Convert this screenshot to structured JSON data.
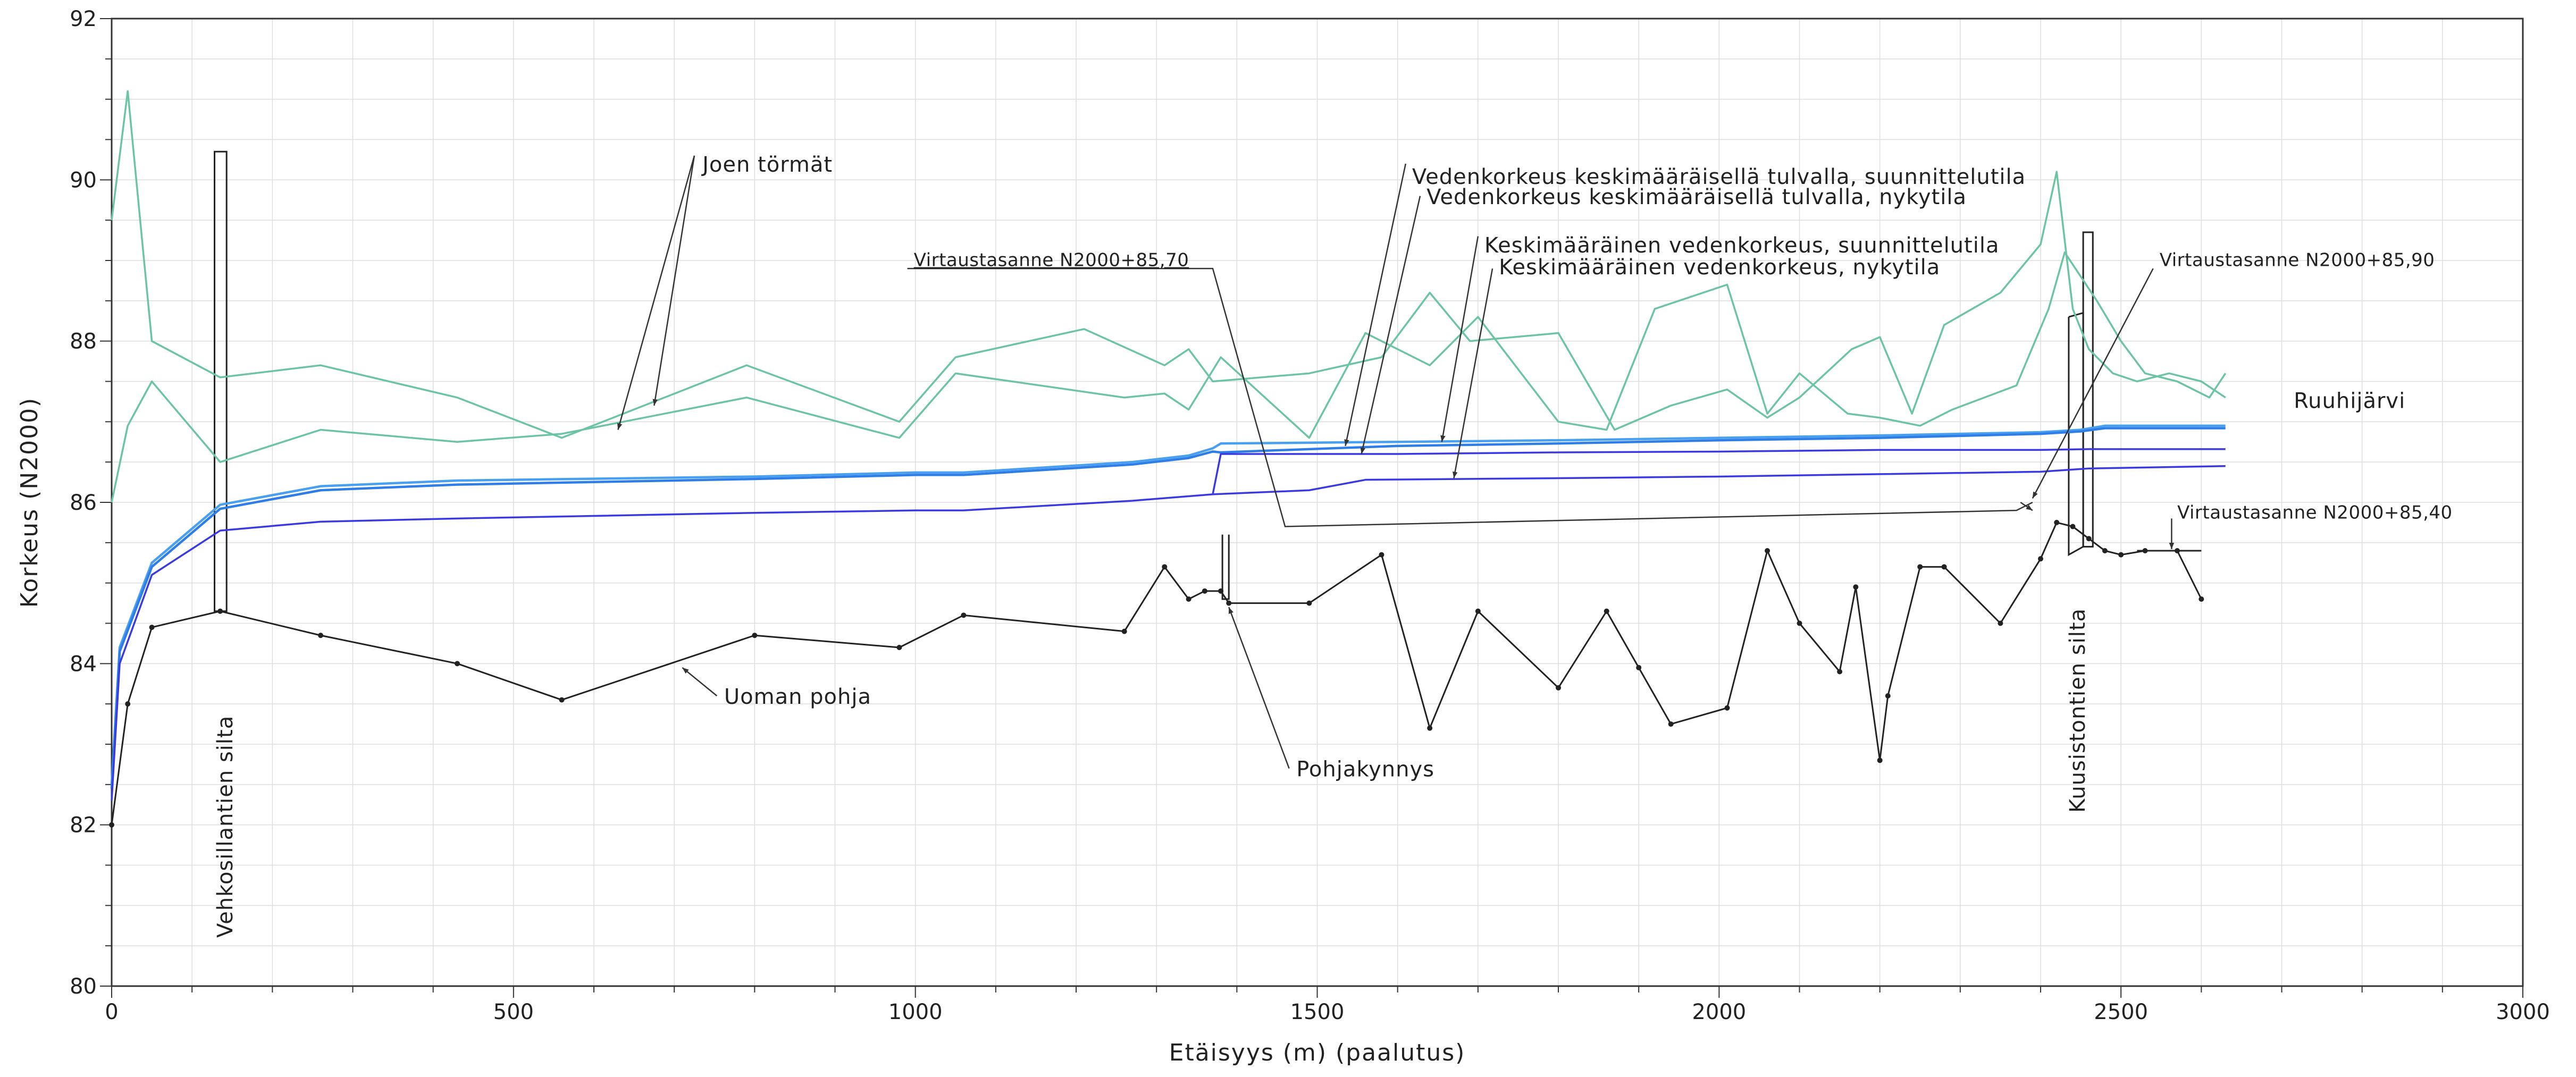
{
  "chart_data": {
    "type": "line",
    "xlabel": "Etäisyys (m) (paalutus)",
    "ylabel": "Korkeus (N2000)",
    "xlim": [
      0,
      3000
    ],
    "ylim": [
      80,
      92
    ],
    "x_ticks": [
      0,
      500,
      1000,
      1500,
      2000,
      2500,
      3000
    ],
    "y_ticks": [
      80,
      82,
      84,
      86,
      88,
      90,
      92
    ],
    "grid": true,
    "colors": {
      "bank": "#6cc4a4",
      "water_high_design": "#4aa0f0",
      "water_high_current": "#2f7ee8",
      "water_mean": "#3a3ae0",
      "bed": "#222222",
      "frame": "#333333",
      "grid": "#dddddd"
    },
    "series": [
      {
        "key": "bank_left",
        "color_key": "bank",
        "x": [
          0,
          20,
          50,
          135,
          260,
          430,
          560,
          790,
          980,
          1050,
          1210,
          1310,
          1340,
          1370,
          1490,
          1580,
          1640,
          1690,
          1800,
          1870,
          1940,
          2010,
          2060,
          2100,
          2165,
          2200,
          2240,
          2280,
          2350,
          2400,
          2420,
          2440,
          2460,
          2490,
          2520,
          2560,
          2600,
          2630
        ],
        "y": [
          89.5,
          91.1,
          88.0,
          87.55,
          87.7,
          87.3,
          86.8,
          87.7,
          87.0,
          87.8,
          88.15,
          87.7,
          87.9,
          87.5,
          87.6,
          87.8,
          88.6,
          88.0,
          88.1,
          86.9,
          87.2,
          87.4,
          87.05,
          87.3,
          87.9,
          88.05,
          87.1,
          88.2,
          88.6,
          89.2,
          90.1,
          88.4,
          87.9,
          87.6,
          87.5,
          87.6,
          87.5,
          87.3
        ]
      },
      {
        "key": "bank_right",
        "color_key": "bank",
        "x": [
          0,
          20,
          50,
          135,
          260,
          430,
          560,
          790,
          980,
          1050,
          1260,
          1310,
          1340,
          1380,
          1490,
          1560,
          1640,
          1700,
          1800,
          1860,
          1920,
          2010,
          2060,
          2100,
          2160,
          2200,
          2250,
          2290,
          2370,
          2410,
          2430,
          2450,
          2470,
          2500,
          2530,
          2570,
          2610,
          2630
        ],
        "y": [
          86.0,
          86.95,
          87.5,
          86.5,
          86.9,
          86.75,
          86.85,
          87.3,
          86.8,
          87.6,
          87.3,
          87.35,
          87.15,
          87.8,
          86.8,
          88.1,
          87.7,
          88.3,
          87.0,
          86.9,
          88.4,
          88.7,
          87.1,
          87.6,
          87.1,
          87.05,
          86.95,
          87.15,
          87.45,
          88.4,
          89.1,
          88.8,
          88.5,
          88.0,
          87.6,
          87.5,
          87.3,
          87.6
        ]
      },
      {
        "key": "hw_design",
        "color_key": "water_high_design",
        "x": [
          0,
          10,
          50,
          135,
          260,
          430,
          800,
          1000,
          1060,
          1270,
          1340,
          1370,
          1380,
          1600,
          1800,
          2000,
          2200,
          2400,
          2450,
          2480,
          2630
        ],
        "y": [
          82.5,
          84.2,
          85.25,
          85.97,
          86.2,
          86.27,
          86.32,
          86.37,
          86.37,
          86.5,
          86.58,
          86.67,
          86.73,
          86.75,
          86.77,
          86.8,
          86.83,
          86.87,
          86.9,
          86.95,
          86.95
        ]
      },
      {
        "key": "hw_current",
        "color_key": "water_high_current",
        "x": [
          0,
          10,
          50,
          135,
          260,
          430,
          800,
          1000,
          1060,
          1270,
          1340,
          1370,
          1380,
          1600,
          1800,
          2000,
          2200,
          2400,
          2450,
          2480,
          2630
        ],
        "y": [
          82.45,
          84.15,
          85.2,
          85.92,
          86.15,
          86.22,
          86.29,
          86.34,
          86.34,
          86.47,
          86.55,
          86.63,
          86.62,
          86.7,
          86.73,
          86.77,
          86.8,
          86.85,
          86.88,
          86.92,
          86.92
        ]
      },
      {
        "key": "mw_design",
        "color_key": "water_mean",
        "x": [
          1370,
          1380,
          1600,
          1800,
          2000,
          2200,
          2400,
          2460,
          2630
        ],
        "y": [
          86.1,
          86.6,
          86.6,
          86.62,
          86.63,
          86.65,
          86.65,
          86.66,
          86.66
        ]
      },
      {
        "key": "mw_current",
        "color_key": "water_mean",
        "x": [
          0,
          10,
          50,
          135,
          260,
          430,
          800,
          1000,
          1060,
          1270,
          1370,
          1490,
          1560,
          1800,
          2000,
          2200,
          2400,
          2460,
          2630
        ],
        "y": [
          82.3,
          84.0,
          85.1,
          85.65,
          85.76,
          85.8,
          85.87,
          85.9,
          85.9,
          86.02,
          86.1,
          86.15,
          86.28,
          86.3,
          86.32,
          86.35,
          86.38,
          86.42,
          86.45
        ]
      },
      {
        "key": "bed",
        "color_key": "bed",
        "markers": true,
        "x": [
          0,
          20,
          50,
          135,
          260,
          430,
          560,
          800,
          980,
          1060,
          1260,
          1310,
          1340,
          1360,
          1380,
          1390,
          1490,
          1580,
          1640,
          1700,
          1800,
          1860,
          1900,
          1940,
          2010,
          2060,
          2100,
          2150,
          2170,
          2200,
          2210,
          2250,
          2280,
          2350,
          2400,
          2420,
          2440,
          2460,
          2480,
          2500,
          2530,
          2570,
          2600
        ],
        "y": [
          82.0,
          83.5,
          84.45,
          84.65,
          84.35,
          84.0,
          83.55,
          84.35,
          84.2,
          84.6,
          84.4,
          85.2,
          84.8,
          84.9,
          84.9,
          84.75,
          84.75,
          85.35,
          83.2,
          84.65,
          83.7,
          84.65,
          83.95,
          83.25,
          83.45,
          85.4,
          84.5,
          83.9,
          84.95,
          82.8,
          83.6,
          85.2,
          85.2,
          84.5,
          85.3,
          85.75,
          85.7,
          85.55,
          85.4,
          85.35,
          85.4,
          85.4,
          84.8
        ]
      }
    ],
    "annotations": [
      {
        "key": "banks",
        "text": "Joen törmät"
      },
      {
        "key": "hw_design",
        "text": "Vedenkorkeus keskimääräisellä tulvalla, suunnittelutila"
      },
      {
        "key": "hw_current",
        "text": "Vedenkorkeus keskimääräisellä tulvalla, nykytila"
      },
      {
        "key": "mw_design",
        "text": "Keskimääräinen vedenkorkeus, suunnittelutila"
      },
      {
        "key": "mw_current",
        "text": "Keskimääräinen vedenkorkeus, nykytila"
      },
      {
        "key": "sill_left",
        "text": "Virtaustasanne N2000+85,70"
      },
      {
        "key": "sill_right",
        "text": "Virtaustasanne N2000+85,90"
      },
      {
        "key": "sill_end",
        "text": "Virtaustasanne N2000+85,40"
      },
      {
        "key": "lake",
        "text": "Ruuhijärvi"
      },
      {
        "key": "bed",
        "text": "Uoman pohja"
      },
      {
        "key": "step",
        "text": "Pohjakynnys"
      },
      {
        "key": "bridge_left",
        "text": "Vehkosillantien silta"
      },
      {
        "key": "bridge_right",
        "text": "Kuusistontien silta"
      }
    ]
  }
}
